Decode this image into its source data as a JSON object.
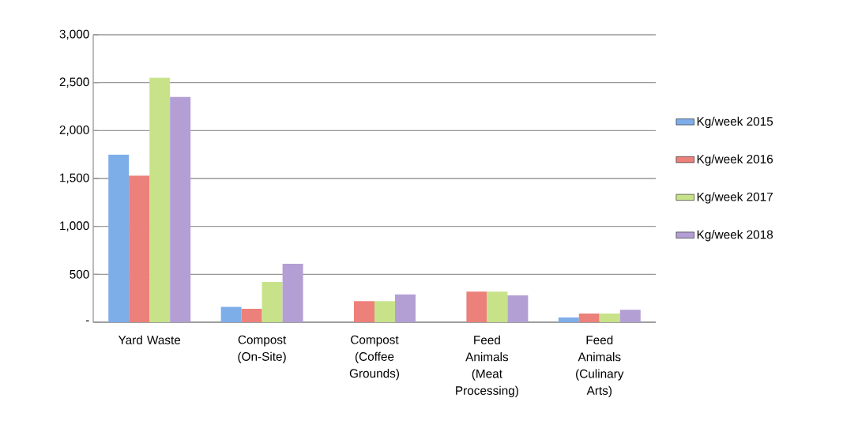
{
  "chart_data": {
    "type": "bar",
    "categories": [
      "Yard Waste",
      "Compost (On-Site)",
      "Compost (Coffee Grounds)",
      "Feed Animals (Meat Processing)",
      "Feed Animals (Culinary Arts)"
    ],
    "series": [
      {
        "name": "Kg/week 2015",
        "color": "#7eaee8",
        "values": [
          1750,
          160,
          0,
          0,
          50
        ]
      },
      {
        "name": "Kg/week 2016",
        "color": "#ec807a",
        "values": [
          1530,
          140,
          220,
          320,
          90
        ]
      },
      {
        "name": "Kg/week 2017",
        "color": "#c8e28a",
        "values": [
          2550,
          420,
          220,
          320,
          90
        ]
      },
      {
        "name": "Kg/week 2018",
        "color": "#b39fd4",
        "values": [
          2350,
          610,
          290,
          280,
          130
        ]
      }
    ],
    "ylim": [
      0,
      3000
    ],
    "yticks": [
      {
        "value": 0,
        "label": "-"
      },
      {
        "value": 500,
        "label": "500"
      },
      {
        "value": 1000,
        "label": "1,000"
      },
      {
        "value": 1500,
        "label": "1,500"
      },
      {
        "value": 2000,
        "label": "2,000"
      },
      {
        "value": 2500,
        "label": "2,500"
      },
      {
        "value": 3000,
        "label": "3,000"
      }
    ],
    "grid": "y",
    "legend": "right"
  }
}
